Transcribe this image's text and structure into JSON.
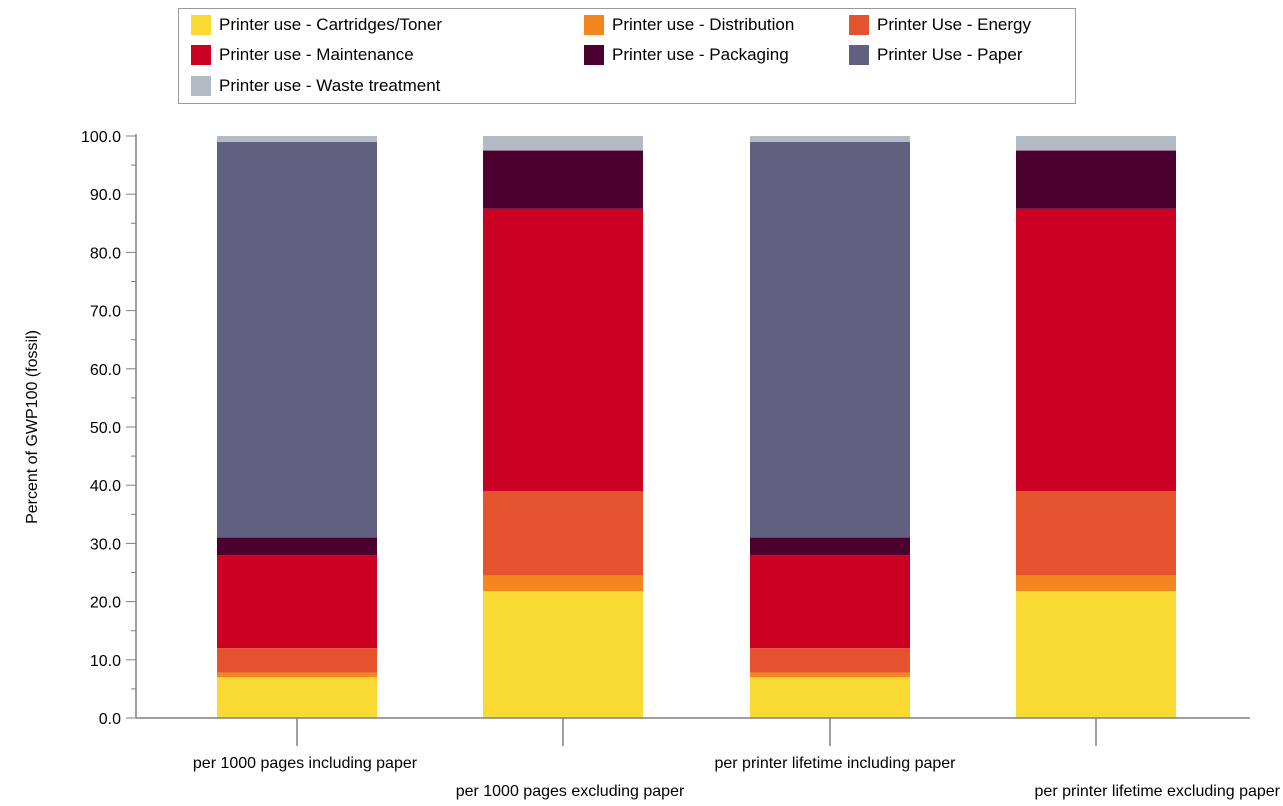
{
  "chart_data": {
    "type": "bar",
    "stacked": true,
    "ylabel": "Percent of GWP100 (fossil)",
    "ylim": [
      0,
      100
    ],
    "ytick_step": 10,
    "yticks": [
      "0.0",
      "10.0",
      "20.0",
      "30.0",
      "40.0",
      "50.0",
      "60.0",
      "70.0",
      "80.0",
      "90.0",
      "100.0"
    ],
    "categories": [
      "per 1000 pages including paper",
      "per 1000 pages excluding paper",
      "per printer lifetime including paper",
      "per printer lifetime excluding paper"
    ],
    "legend_position": "top",
    "series": [
      {
        "name": "Printer use - Cartridges/Toner",
        "color": "#F9DA33",
        "values": [
          7.0,
          21.8,
          7.0,
          21.8
        ]
      },
      {
        "name": "Printer use - Distribution",
        "color": "#F3861F",
        "values": [
          0.8,
          2.7,
          0.8,
          2.7
        ]
      },
      {
        "name": "Printer Use - Energy",
        "color": "#E5522E",
        "values": [
          4.2,
          14.5,
          4.2,
          14.5
        ]
      },
      {
        "name": "Printer use - Maintenance",
        "color": "#CC0022",
        "values": [
          16.0,
          48.5,
          16.0,
          48.5
        ]
      },
      {
        "name": "Printer use - Packaging",
        "color": "#4C0030",
        "values": [
          3.0,
          10.0,
          3.0,
          10.0
        ]
      },
      {
        "name": "Printer Use - Paper",
        "color": "#606180",
        "values": [
          68.0,
          0.0,
          68.0,
          0.0
        ]
      },
      {
        "name": "Printer use - Waste treatment",
        "color": "#B3BAC3",
        "values": [
          1.0,
          2.5,
          1.0,
          2.5
        ]
      }
    ]
  }
}
